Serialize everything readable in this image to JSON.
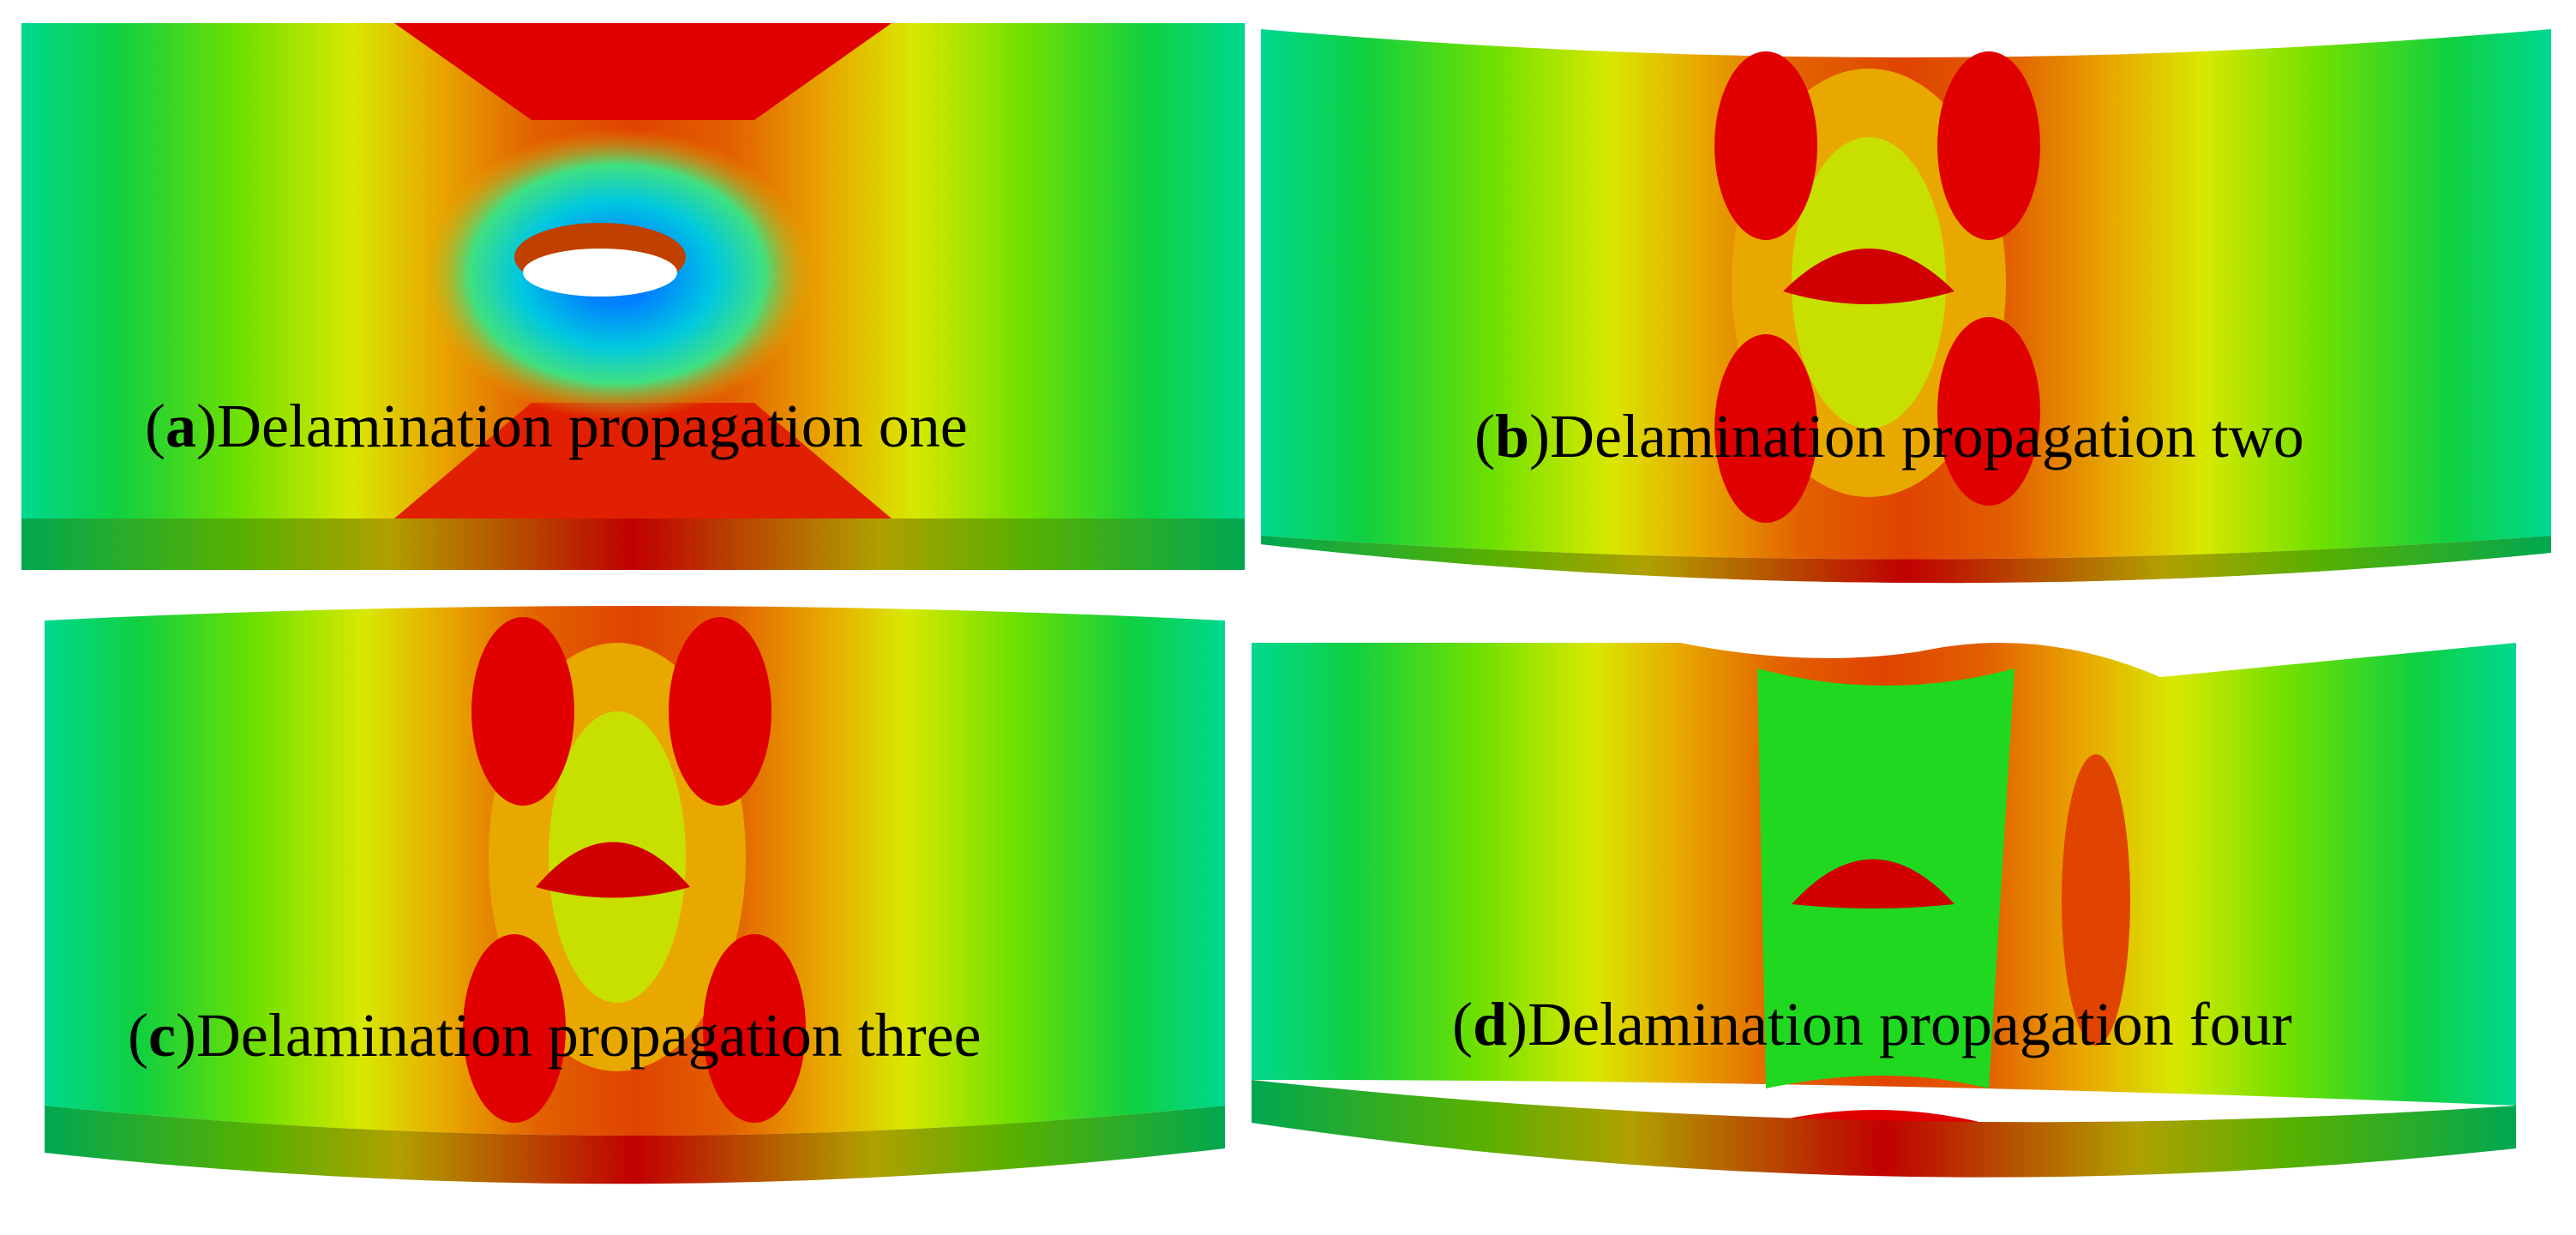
{
  "panels": [
    {
      "label_parts": [
        "(",
        "a",
        ")",
        "Delamination propagation one"
      ]
    },
    {
      "label_parts": [
        "(",
        "b",
        ")",
        "Delamination propagation two"
      ]
    },
    {
      "label_parts": [
        "(",
        "c",
        ")",
        "Delamination propagation three"
      ]
    },
    {
      "label_parts": [
        "(",
        "d",
        ")",
        "Delamination propagation four"
      ]
    }
  ]
}
